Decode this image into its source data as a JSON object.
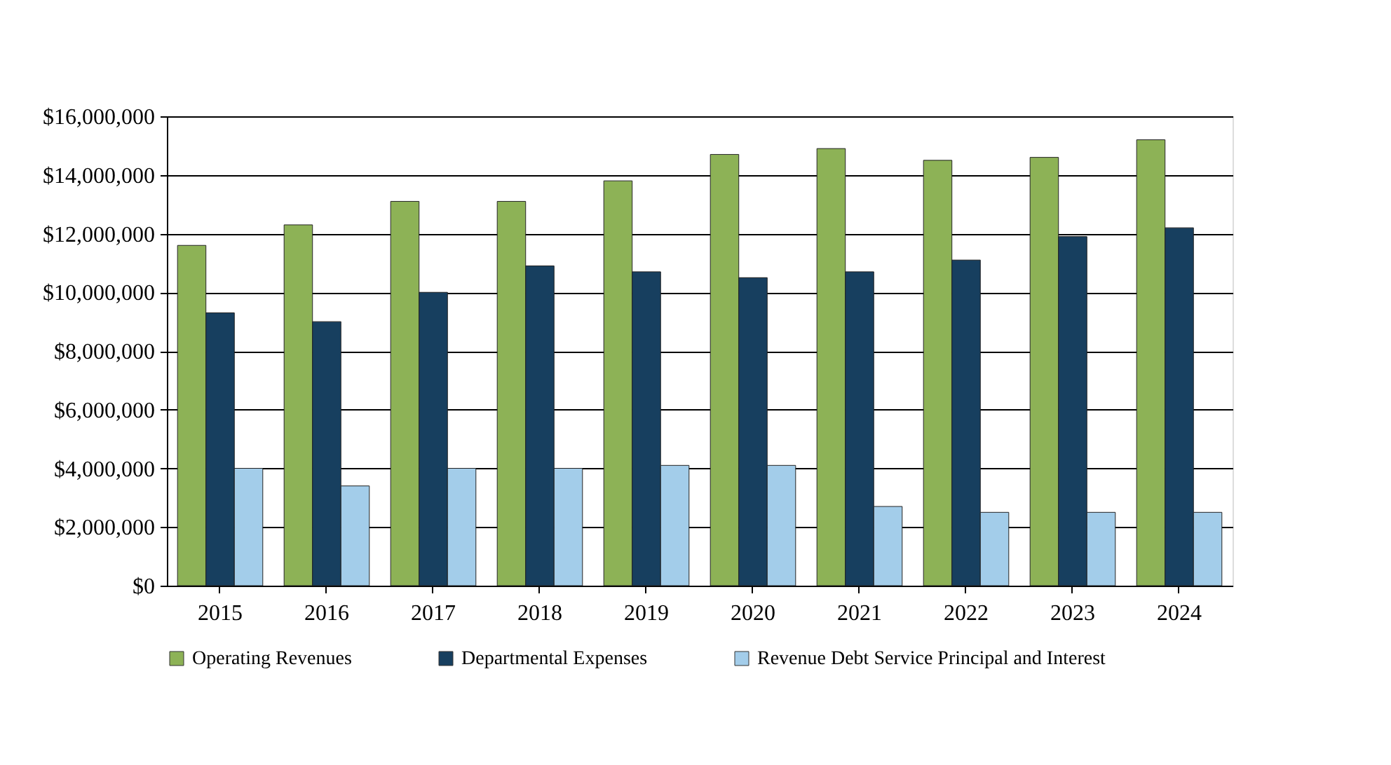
{
  "chart_data": {
    "type": "bar",
    "categories": [
      "2015",
      "2016",
      "2017",
      "2018",
      "2019",
      "2020",
      "2021",
      "2022",
      "2023",
      "2024"
    ],
    "series": [
      {
        "name": "Operating Revenues",
        "color": "#8db256",
        "values": [
          11600000,
          12300000,
          13100000,
          13100000,
          13800000,
          14700000,
          14900000,
          14500000,
          14600000,
          15200000
        ]
      },
      {
        "name": "Departmental Expenses",
        "color": "#173f5f",
        "values": [
          9300000,
          9000000,
          10000000,
          10900000,
          10700000,
          10500000,
          10700000,
          11100000,
          11900000,
          12200000
        ]
      },
      {
        "name": "Revenue Debt Service Principal and Interest",
        "color": "#a3cdea",
        "values": [
          4000000,
          3400000,
          4000000,
          4000000,
          4100000,
          4100000,
          2700000,
          2500000,
          2500000,
          2500000
        ]
      }
    ],
    "ylim": [
      0,
      16000000
    ],
    "yticks": [
      {
        "value": 0,
        "label": "$0"
      },
      {
        "value": 2000000,
        "label": "$2,000,000"
      },
      {
        "value": 4000000,
        "label": "$4,000,000"
      },
      {
        "value": 6000000,
        "label": "$6,000,000"
      },
      {
        "value": 8000000,
        "label": "$8,000,000"
      },
      {
        "value": 10000000,
        "label": "$10,000,000"
      },
      {
        "value": 12000000,
        "label": "$12,000,000"
      },
      {
        "value": 14000000,
        "label": "$14,000,000"
      },
      {
        "value": 16000000,
        "label": "$16,000,000"
      }
    ],
    "grid": "y",
    "legend": "bottom"
  }
}
